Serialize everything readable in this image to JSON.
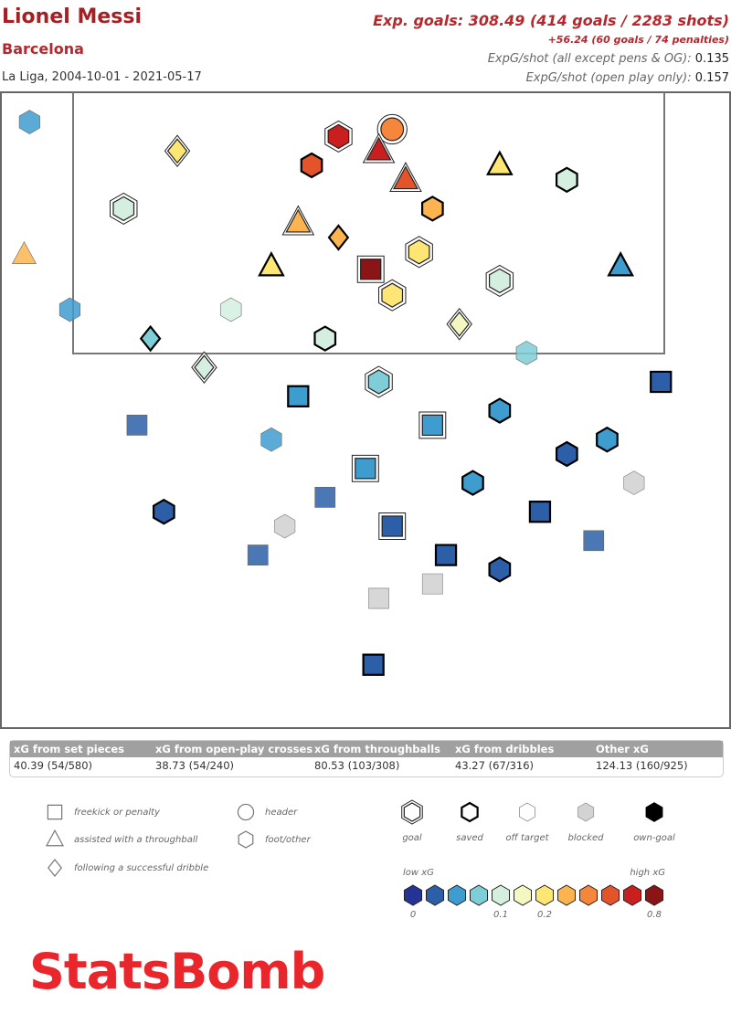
{
  "header": {
    "player": "Lionel Messi",
    "team": "Barcelona",
    "competition": "La Liga, 2004-10-01 - 2021-05-17",
    "xg_total": "Exp. goals: 308.49 (414 goals / 2283 shots)",
    "penalties": "+56.24 (60 goals / 74 penalties)",
    "per_shot_label": "ExpG/shot (all except pens & OG):",
    "per_shot_value": "0.135",
    "open_play_label": "ExpG/shot (open play only):",
    "open_play_value": "0.157"
  },
  "table": {
    "headers": [
      "xG from set pieces",
      "xG from open-play crosses",
      "xG from throughballs",
      "xG from dribbles",
      "Other xG"
    ],
    "values": [
      "40.39 (54/580)",
      "38.73 (54/240)",
      "80.53 (103/308)",
      "43.27 (67/316)",
      "124.13 (160/925)"
    ]
  },
  "legend": {
    "types": [
      "freekick or penalty",
      "assisted with a throughball",
      "following a successful dribble",
      "header",
      "foot/other"
    ],
    "outcomes": [
      "goal",
      "saved",
      "off target",
      "blocked",
      "own-goal"
    ],
    "low": "low xG",
    "high": "high xG",
    "colors": [
      "#253494",
      "#2c5fa8",
      "#3f9ccf",
      "#7fcdd6",
      "#d4eee0",
      "#f5f7c0",
      "#fde674",
      "#fcb450",
      "#f5873c",
      "#e3542a",
      "#c9201f",
      "#8b1416"
    ],
    "ticks": [
      0,
      0.1,
      0.2,
      0.8
    ]
  },
  "shots": [
    {
      "x": 117,
      "y": 38,
      "xg": 0.65,
      "type": "foot/other",
      "outcome": "goal"
    },
    {
      "x": 116,
      "y": 41,
      "xg": 0.7,
      "type": "assisted with a throughball",
      "outcome": "goal"
    },
    {
      "x": 115,
      "y": 36,
      "xg": 0.55,
      "type": "foot/other",
      "outcome": "saved"
    },
    {
      "x": 114,
      "y": 43,
      "xg": 0.5,
      "type": "assisted with a throughball",
      "outcome": "goal"
    },
    {
      "x": 117.5,
      "y": 42,
      "xg": 0.45,
      "type": "header",
      "outcome": "goal"
    },
    {
      "x": 107.8,
      "y": 40.4,
      "xg": 0.76,
      "type": "freekick or penalty",
      "outcome": "goal"
    },
    {
      "x": 112,
      "y": 45,
      "xg": 0.35,
      "type": "foot/other",
      "outcome": "saved"
    },
    {
      "x": 111,
      "y": 35,
      "xg": 0.3,
      "type": "assisted with a throughball",
      "outcome": "goal"
    },
    {
      "x": 110,
      "y": 38,
      "xg": 0.28,
      "type": "following a successful dribble",
      "outcome": "saved"
    },
    {
      "x": 109,
      "y": 44,
      "xg": 0.25,
      "type": "foot/other",
      "outcome": "goal"
    },
    {
      "x": 108,
      "y": 33,
      "xg": 0.18,
      "type": "assisted with a throughball",
      "outcome": "saved"
    },
    {
      "x": 106,
      "y": 42,
      "xg": 0.2,
      "type": "foot/other",
      "outcome": "goal"
    },
    {
      "x": 105,
      "y": 30,
      "xg": 0.12,
      "type": "foot/other",
      "outcome": "off target"
    },
    {
      "x": 104,
      "y": 47,
      "xg": 0.15,
      "type": "following a successful dribble",
      "outcome": "goal"
    },
    {
      "x": 103,
      "y": 37,
      "xg": 0.1,
      "type": "foot/other",
      "outcome": "saved"
    },
    {
      "x": 102,
      "y": 52,
      "xg": 0.08,
      "type": "foot/other",
      "outcome": "off target"
    },
    {
      "x": 101,
      "y": 28,
      "xg": 0.09,
      "type": "following a successful dribble",
      "outcome": "goal"
    },
    {
      "x": 100,
      "y": 41,
      "xg": 0.07,
      "type": "foot/other",
      "outcome": "goal"
    },
    {
      "x": 99,
      "y": 35,
      "xg": 0.06,
      "type": "freekick or penalty",
      "outcome": "saved"
    },
    {
      "x": 98,
      "y": 50,
      "xg": 0.05,
      "type": "foot/other",
      "outcome": "saved"
    },
    {
      "x": 97,
      "y": 45,
      "xg": 0.06,
      "type": "freekick or penalty",
      "outcome": "goal"
    },
    {
      "x": 96,
      "y": 33,
      "xg": 0.04,
      "type": "foot/other",
      "outcome": "off target"
    },
    {
      "x": 95,
      "y": 55,
      "xg": 0.03,
      "type": "foot/other",
      "outcome": "saved"
    },
    {
      "x": 94,
      "y": 40,
      "xg": 0.05,
      "type": "freekick or penalty",
      "outcome": "goal"
    },
    {
      "x": 93,
      "y": 48,
      "xg": 0.04,
      "type": "foot/other",
      "outcome": "saved"
    },
    {
      "x": 92,
      "y": 37,
      "xg": 0.03,
      "type": "freekick or penalty",
      "outcome": "off target"
    },
    {
      "x": 91,
      "y": 53,
      "xg": 0.02,
      "type": "freekick or penalty",
      "outcome": "saved"
    },
    {
      "x": 90,
      "y": 42,
      "xg": 0.03,
      "type": "freekick or penalty",
      "outcome": "goal"
    },
    {
      "x": 89,
      "y": 57,
      "xg": 0.02,
      "type": "freekick or penalty",
      "outcome": "off target"
    },
    {
      "x": 88,
      "y": 46,
      "xg": 0.02,
      "type": "freekick or penalty",
      "outcome": "saved"
    },
    {
      "x": 87,
      "y": 50,
      "xg": 0.02,
      "type": "foot/other",
      "outcome": "saved"
    },
    {
      "x": 85,
      "y": 41,
      "xg": 0.02,
      "type": "freekick or penalty",
      "outcome": "blocked"
    },
    {
      "x": 80.4,
      "y": 40.6,
      "xg": 0.02,
      "type": "freekick or penalty",
      "outcome": "saved"
    },
    {
      "x": 114,
      "y": 55,
      "xg": 0.1,
      "type": "foot/other",
      "outcome": "saved"
    },
    {
      "x": 112,
      "y": 22,
      "xg": 0.12,
      "type": "foot/other",
      "outcome": "goal"
    },
    {
      "x": 118,
      "y": 15,
      "xg": 0.04,
      "type": "foot/other",
      "outcome": "off target"
    },
    {
      "x": 108,
      "y": 59,
      "xg": 0.06,
      "type": "assisted with a throughball",
      "outcome": "saved"
    },
    {
      "x": 105,
      "y": 18,
      "xg": 0.05,
      "type": "foot/other",
      "outcome": "off target"
    },
    {
      "x": 100,
      "y": 62,
      "xg": 0.03,
      "type": "freekick or penalty",
      "outcome": "saved"
    },
    {
      "x": 97,
      "y": 23,
      "xg": 0.03,
      "type": "freekick or penalty",
      "outcome": "off target"
    },
    {
      "x": 93,
      "y": 60,
      "xg": 0.02,
      "type": "foot/other",
      "outcome": "blocked"
    },
    {
      "x": 91,
      "y": 25,
      "xg": 0.02,
      "type": "foot/other",
      "outcome": "saved"
    },
    {
      "x": 108.8,
      "y": 14.6,
      "xg": 0.3,
      "type": "assisted with a throughball",
      "outcome": "off target"
    },
    {
      "x": 116,
      "y": 26,
      "xg": 0.2,
      "type": "following a successful dribble",
      "outcome": "goal"
    },
    {
      "x": 115,
      "y": 50,
      "xg": 0.25,
      "type": "assisted with a throughball",
      "outcome": "saved"
    },
    {
      "x": 107,
      "y": 50,
      "xg": 0.12,
      "type": "foot/other",
      "outcome": "goal"
    },
    {
      "x": 103,
      "y": 24,
      "xg": 0.07,
      "type": "following a successful dribble",
      "outcome": "saved"
    },
    {
      "x": 96,
      "y": 58,
      "xg": 0.04,
      "type": "foot/other",
      "outcome": "saved"
    },
    {
      "x": 86,
      "y": 45,
      "xg": 0.02,
      "type": "freekick or penalty",
      "outcome": "blocked"
    },
    {
      "x": 90,
      "y": 34,
      "xg": 0.03,
      "type": "foot/other",
      "outcome": "blocked"
    },
    {
      "x": 88,
      "y": 32,
      "xg": 0.02,
      "type": "freekick or penalty",
      "outcome": "off target"
    }
  ],
  "brand": "StatsBomb"
}
